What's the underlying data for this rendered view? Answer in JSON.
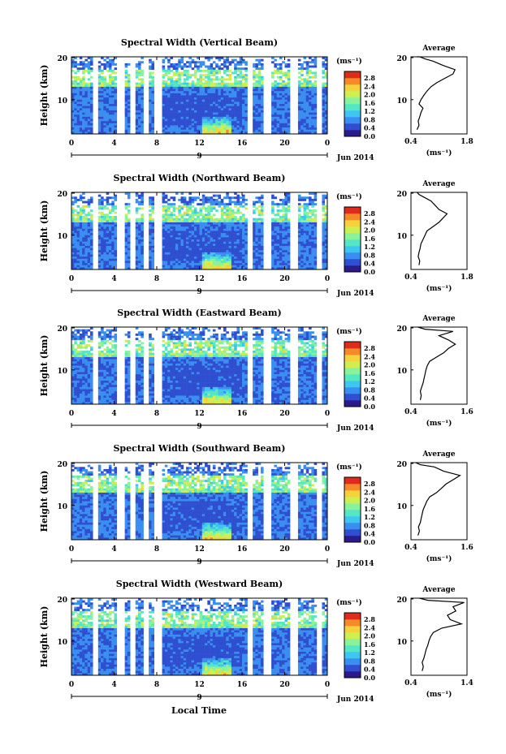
{
  "figure": {
    "x_axis_label": "Local Time",
    "y_axis_label": "Height (km)",
    "date_label": "Jun 2014",
    "date_day": "9",
    "x_ticks": [
      "0",
      "4",
      "8",
      "12",
      "16",
      "20",
      "0"
    ],
    "y_ticks": [
      "20",
      "10"
    ],
    "colorbar_unit": "(ms⁻¹)",
    "colorbar_ticks": [
      "2.8",
      "2.4",
      "2.0",
      "1.6",
      "1.2",
      "0.8",
      "0.4",
      "0.0"
    ],
    "average_title": "Average",
    "average_unit": "(ms⁻¹)",
    "colormap": [
      "#2b1a8c",
      "#2f4fd0",
      "#3a8ef0",
      "#3fc6ee",
      "#55e6c4",
      "#8af29a",
      "#cfee52",
      "#f6d23a",
      "#f68a2a",
      "#e02a1c"
    ]
  },
  "panels": [
    {
      "title": "Spectral Width (Vertical Beam)",
      "avg_ticks": [
        "0.4",
        "1.8"
      ]
    },
    {
      "title": "Spectral Width (Northward Beam)",
      "avg_ticks": [
        "0.4",
        "1.8"
      ]
    },
    {
      "title": "Spectral Width (Eastward Beam)",
      "avg_ticks": [
        "0.4",
        "1.6"
      ]
    },
    {
      "title": "Spectral Width (Southward Beam)",
      "avg_ticks": [
        "0.4",
        "1.6"
      ]
    },
    {
      "title": "Spectral Width (Westward Beam)",
      "avg_ticks": [
        "0.4",
        "1.4"
      ]
    }
  ],
  "chart_data": [
    {
      "type": "heatmap",
      "title": "Spectral Width (Vertical Beam)",
      "xlabel": "",
      "ylabel": "Height (km)",
      "xlim": [
        0,
        24
      ],
      "ylim": [
        2,
        20
      ],
      "zlim": [
        0.0,
        3.0
      ],
      "z_unit": "(ms⁻¹)"
    },
    {
      "type": "line",
      "title": "Average",
      "xlabel": "(ms⁻¹)",
      "ylabel": "",
      "xlim": [
        0.4,
        1.8
      ],
      "ylim": [
        2,
        20
      ],
      "x": [
        0.55,
        0.6,
        0.58,
        0.62,
        0.65,
        0.7,
        0.6,
        0.65,
        0.72,
        0.8,
        0.9,
        1.05,
        1.25,
        1.45,
        1.5,
        1.2,
        0.95,
        0.75,
        0.62,
        0.55
      ],
      "y": [
        3,
        4,
        5,
        6,
        7,
        8,
        9,
        10,
        11,
        12,
        13,
        14,
        15,
        16,
        17,
        18,
        19,
        19.5,
        20,
        20
      ]
    },
    {
      "type": "heatmap",
      "title": "Spectral Width (Northward Beam)",
      "xlabel": "",
      "ylabel": "Height (km)",
      "xlim": [
        0,
        24
      ],
      "ylim": [
        2,
        20
      ],
      "zlim": [
        0.0,
        3.0
      ],
      "z_unit": "(ms⁻¹)"
    },
    {
      "type": "line",
      "title": "Average",
      "xlabel": "(ms⁻¹)",
      "ylabel": "",
      "xlim": [
        0.4,
        1.8
      ],
      "ylim": [
        2,
        20
      ],
      "x": [
        0.6,
        0.62,
        0.58,
        0.6,
        0.63,
        0.65,
        0.7,
        0.75,
        0.8,
        0.95,
        1.1,
        1.2,
        1.3,
        1.1,
        1.0,
        0.9,
        0.7,
        0.6,
        0.55
      ],
      "y": [
        3,
        4,
        5,
        6,
        7,
        8,
        9,
        10,
        11,
        12,
        13,
        14,
        15,
        16,
        17,
        18,
        19,
        19.5,
        20
      ]
    },
    {
      "type": "heatmap",
      "title": "Spectral Width (Eastward Beam)",
      "xlabel": "",
      "ylabel": "Height (km)",
      "xlim": [
        0,
        24
      ],
      "ylim": [
        2,
        20
      ],
      "zlim": [
        0.0,
        3.0
      ],
      "z_unit": "(ms⁻¹)"
    },
    {
      "type": "line",
      "title": "Average",
      "xlabel": "(ms⁻¹)",
      "ylabel": "",
      "xlim": [
        0.4,
        1.6
      ],
      "ylim": [
        2,
        20
      ],
      "x": [
        0.6,
        0.62,
        0.6,
        0.63,
        0.66,
        0.68,
        0.7,
        0.72,
        0.75,
        0.8,
        0.95,
        1.1,
        1.2,
        1.35,
        1.2,
        1.0,
        1.3,
        0.7,
        0.55
      ],
      "y": [
        3,
        4,
        5,
        6,
        7,
        8,
        9,
        10,
        11,
        12,
        13,
        14,
        15,
        16,
        17,
        18,
        19,
        19.5,
        20
      ]
    },
    {
      "type": "heatmap",
      "title": "Spectral Width (Southward Beam)",
      "xlabel": "",
      "ylabel": "Height (km)",
      "xlim": [
        0,
        24
      ],
      "ylim": [
        2,
        20
      ],
      "zlim": [
        0.0,
        3.0
      ],
      "z_unit": "(ms⁻¹)"
    },
    {
      "type": "line",
      "title": "Average",
      "xlabel": "(ms⁻¹)",
      "ylabel": "",
      "xlim": [
        0.4,
        1.6
      ],
      "ylim": [
        2,
        20
      ],
      "x": [
        0.55,
        0.58,
        0.56,
        0.6,
        0.62,
        0.64,
        0.66,
        0.7,
        0.74,
        0.8,
        0.95,
        1.05,
        1.15,
        1.3,
        1.45,
        1.1,
        0.9,
        0.6,
        0.5
      ],
      "y": [
        3,
        4,
        5,
        6,
        7,
        8,
        9,
        10,
        11,
        12,
        13,
        14,
        15,
        16,
        17,
        18,
        19,
        19.5,
        20
      ]
    },
    {
      "type": "heatmap",
      "title": "Spectral Width (Westward Beam)",
      "xlabel": "Local Time",
      "ylabel": "Height (km)",
      "xlim": [
        0,
        24
      ],
      "ylim": [
        2,
        20
      ],
      "zlim": [
        0.0,
        3.0
      ],
      "z_unit": "(ms⁻¹)"
    },
    {
      "type": "line",
      "title": "Average",
      "xlabel": "(ms⁻¹)",
      "ylabel": "",
      "xlim": [
        0.4,
        1.4
      ],
      "ylim": [
        2,
        20
      ],
      "x": [
        0.6,
        0.62,
        0.6,
        0.63,
        0.65,
        0.67,
        0.7,
        0.72,
        0.75,
        0.8,
        0.95,
        1.3,
        1.1,
        1.05,
        1.2,
        1.15,
        1.35,
        0.7,
        0.55
      ],
      "y": [
        3,
        4,
        5,
        6,
        7,
        8,
        9,
        10,
        11,
        12,
        13,
        14,
        15,
        16,
        17,
        18,
        19,
        19.5,
        20
      ]
    }
  ]
}
